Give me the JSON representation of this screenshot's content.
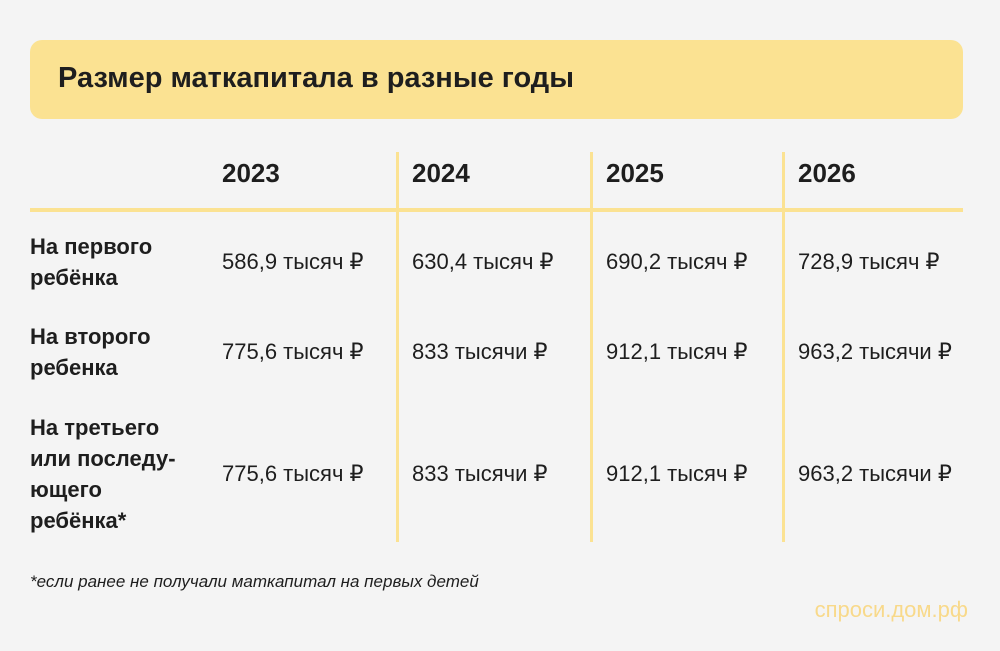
{
  "header": {
    "title": "Размер маткапитала в разные годы"
  },
  "table": {
    "columns": [
      "2023",
      "2024",
      "2025",
      "2026"
    ],
    "rows": [
      {
        "label": [
          "На первого",
          "ребёнка"
        ],
        "cells": [
          "586,9 тысяч ₽",
          "630,4 тысяч ₽",
          "690,2 тысяч ₽",
          "728,9 тысяч ₽"
        ]
      },
      {
        "label": [
          "На второго",
          "ребенка"
        ],
        "cells": [
          "775,6 тысяч ₽",
          "833 тысячи ₽",
          "912,1 тысяч ₽",
          "963,2 тысячи ₽"
        ]
      },
      {
        "label": [
          "На третьего",
          "или последу-",
          "ющего",
          "ребёнка*"
        ],
        "cells": [
          "775,6 тысяч ₽",
          "833 тысячи ₽",
          "912,1 тысяч ₽",
          "963,2 тысячи ₽"
        ]
      }
    ]
  },
  "footnote": "*если ранее не получали маткапитал на первых детей",
  "watermark": "спроси.дом.рф"
}
